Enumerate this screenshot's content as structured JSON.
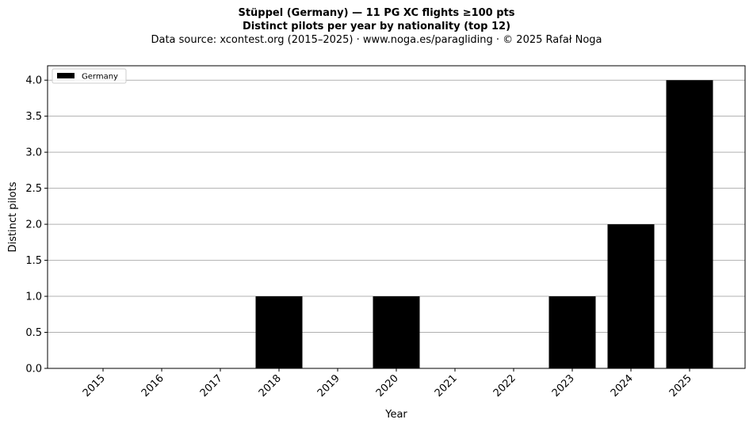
{
  "chart_data": {
    "type": "bar",
    "title": "Stüppel (Germany)  —  11 PG XC flights ≥100 pts",
    "subtitle": "Distinct pilots per year by nationality (top 12)",
    "source": "Data source: xcontest.org (2015–2025)  ·  www.noga.es/paragliding  ·  © 2025 Rafał Noga",
    "xlabel": "Year",
    "ylabel": "Distinct pilots",
    "categories": [
      "2015",
      "2016",
      "2017",
      "2018",
      "2019",
      "2020",
      "2021",
      "2022",
      "2023",
      "2024",
      "2025"
    ],
    "series": [
      {
        "name": "Germany",
        "color": "#000000",
        "values": [
          0,
          0,
          0,
          1,
          0,
          1,
          0,
          0,
          1,
          2,
          4
        ]
      }
    ],
    "ylim": [
      0,
      4.2
    ],
    "yticks": [
      "0.0",
      "0.5",
      "1.0",
      "1.5",
      "2.0",
      "2.5",
      "3.0",
      "3.5",
      "4.0"
    ],
    "grid": "horizontal",
    "legend_position": "top-left"
  }
}
